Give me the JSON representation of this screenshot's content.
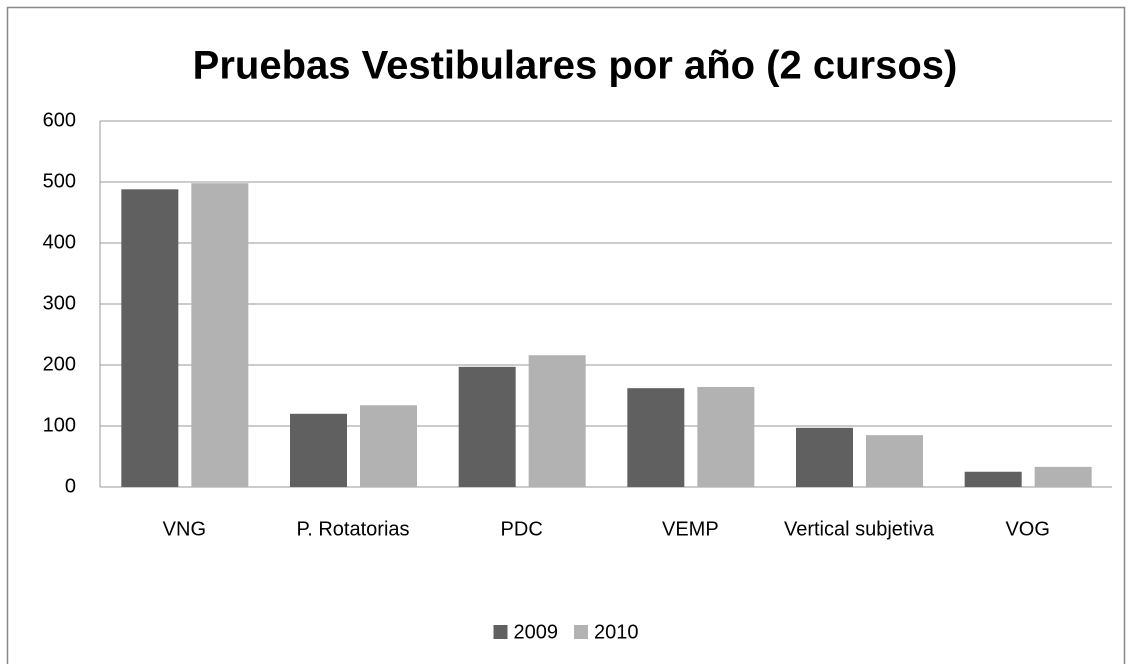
{
  "chart_data": {
    "type": "bar",
    "title": "Pruebas Vestibulares por año (2 cursos)",
    "categories": [
      "VNG",
      "P. Rotatorias",
      "PDC",
      "VEMP",
      "Vertical subjetiva",
      "VOG"
    ],
    "series": [
      {
        "name": "2009",
        "color": "#606060",
        "values": [
          488,
          120,
          197,
          162,
          97,
          25
        ]
      },
      {
        "name": "2010",
        "color": "#b2b2b2",
        "values": [
          498,
          134,
          216,
          164,
          85,
          33
        ]
      }
    ],
    "ylim": [
      0,
      600
    ],
    "yticks": [
      0,
      100,
      200,
      300,
      400,
      500,
      600
    ],
    "grid": true,
    "legend": "bottom"
  }
}
